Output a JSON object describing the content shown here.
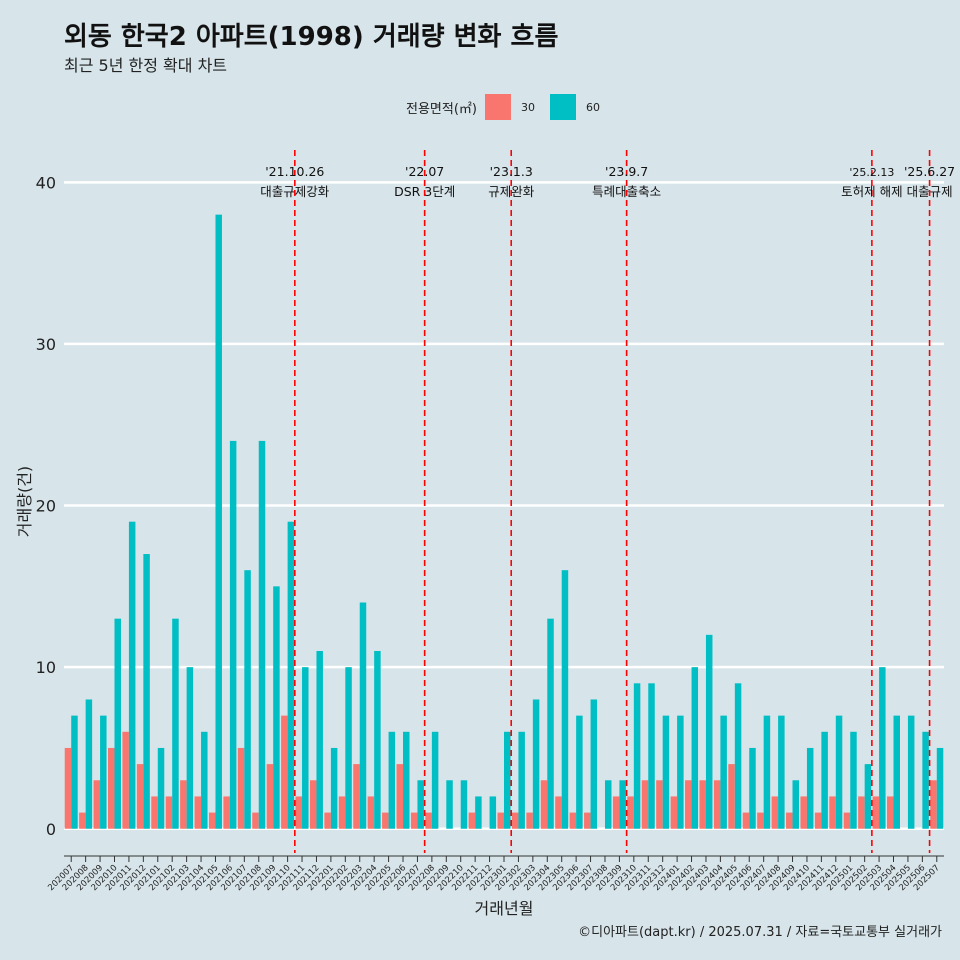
{
  "header": {
    "title": "외동 한국2 아파트(1998) 거래량 변화 흐름",
    "subtitle": "최근 5년 한정 확대 차트"
  },
  "legend": {
    "title": "전용면적(㎡)",
    "items": [
      {
        "label": "30",
        "color": "#f8766d"
      },
      {
        "label": "60",
        "color": "#00bfc4"
      }
    ]
  },
  "caption": "©디아파트(dapt.kr) / 2025.07.31 / 자료=국토교통부 실거래가",
  "chart_data": {
    "type": "bar",
    "xlabel": "거래년월",
    "ylabel": "거래량(건)",
    "ylim": [
      -1.5,
      42
    ],
    "yticks": [
      0,
      10,
      20,
      30,
      40
    ],
    "categories": [
      "202007",
      "202008",
      "202009",
      "202010",
      "202011",
      "202012",
      "202101",
      "202102",
      "202103",
      "202104",
      "202105",
      "202106",
      "202107",
      "202108",
      "202109",
      "202110",
      "202111",
      "202112",
      "202201",
      "202202",
      "202203",
      "202204",
      "202205",
      "202206",
      "202207",
      "202208",
      "202209",
      "202210",
      "202211",
      "202212",
      "202301",
      "202302",
      "202303",
      "202304",
      "202305",
      "202306",
      "202307",
      "202308",
      "202309",
      "202310",
      "202311",
      "202312",
      "202401",
      "202402",
      "202403",
      "202404",
      "202405",
      "202406",
      "202407",
      "202408",
      "202409",
      "202410",
      "202411",
      "202412",
      "202501",
      "202502",
      "202503",
      "202504",
      "202505",
      "202506",
      "202507"
    ],
    "series": [
      {
        "name": "30",
        "color": "#f8766d",
        "values": [
          5,
          1,
          3,
          5,
          6,
          4,
          2,
          2,
          3,
          2,
          1,
          2,
          5,
          1,
          4,
          7,
          2,
          3,
          1,
          2,
          4,
          2,
          1,
          4,
          1,
          1,
          0,
          0,
          1,
          0,
          1,
          1,
          1,
          3,
          2,
          1,
          1,
          0,
          2,
          2,
          3,
          3,
          2,
          3,
          3,
          3,
          4,
          1,
          1,
          2,
          1,
          2,
          1,
          2,
          1,
          2,
          2,
          2,
          0,
          0,
          3
        ]
      },
      {
        "name": "60",
        "color": "#00bfc4",
        "values": [
          7,
          8,
          7,
          13,
          19,
          17,
          5,
          13,
          10,
          6,
          38,
          24,
          16,
          24,
          15,
          19,
          10,
          11,
          5,
          10,
          14,
          11,
          6,
          6,
          3,
          6,
          3,
          3,
          2,
          2,
          6,
          6,
          8,
          13,
          16,
          7,
          8,
          3,
          3,
          9,
          9,
          7,
          7,
          10,
          12,
          7,
          9,
          5,
          7,
          7,
          3,
          5,
          6,
          7,
          6,
          4,
          10,
          7,
          7,
          6,
          5
        ]
      }
    ],
    "events": [
      {
        "date": "'21.10.26",
        "label": "대출규제강화",
        "after": "202110"
      },
      {
        "date": "'22.07",
        "label": "DSR 3단계",
        "after": "202207"
      },
      {
        "date": "'23.1.3",
        "label": "규제완화",
        "after": "202301"
      },
      {
        "date": "'23.9.7",
        "label": "특례대출축소",
        "after": "202309"
      },
      {
        "date": "'25.2.13",
        "label": "토허제 해제",
        "after": "202502"
      },
      {
        "date": "'25.6.27",
        "label": "대출규제",
        "after": "202506"
      }
    ],
    "grid": true,
    "legend_position": "top"
  }
}
